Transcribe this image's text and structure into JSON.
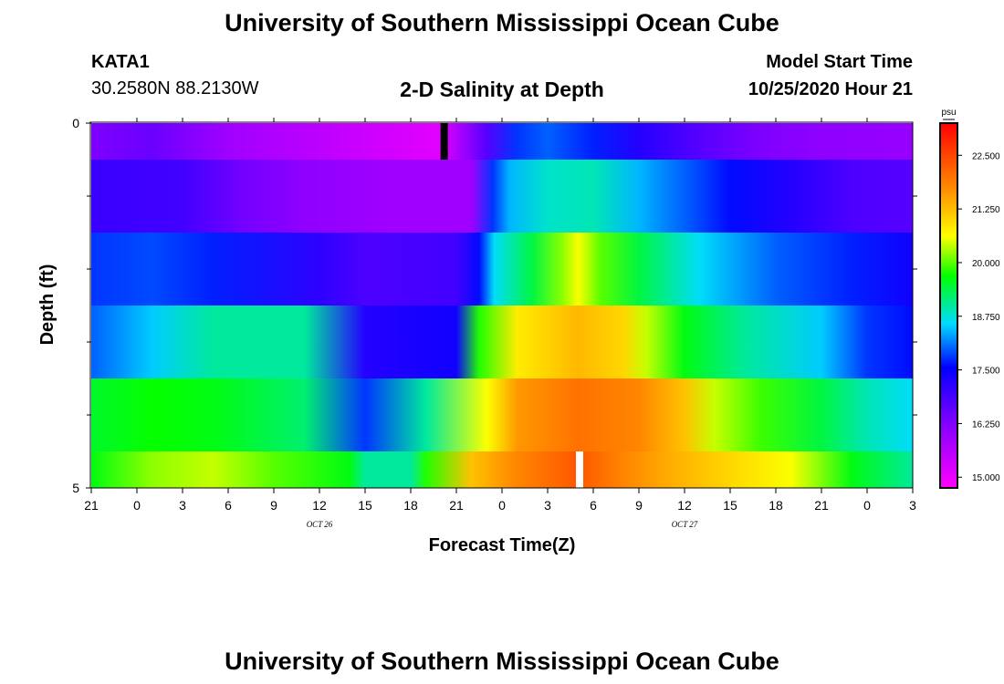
{
  "header": {
    "title": "University of Southern Mississippi Ocean Cube",
    "station": "KATA1",
    "coords": "30.2580N 88.2130W",
    "product": "2-D Salinity at Depth",
    "model_label": "Model Start Time",
    "model_time": "10/25/2020 Hour 21",
    "footer_title": "University of Southern Mississippi Ocean Cube"
  },
  "chart_data": {
    "type": "heatmap",
    "title": "2-D Salinity at Depth",
    "xlabel": "Forecast Time(Z)",
    "ylabel": "Depth (ft)",
    "x_hours": [
      0,
      3,
      6,
      9,
      12,
      15,
      18,
      21,
      24,
      27,
      30,
      33,
      36,
      39,
      42,
      45,
      48,
      51,
      54
    ],
    "x_tick_labels": [
      "21",
      "0",
      "3",
      "6",
      "9",
      "12",
      "15",
      "18",
      "21",
      "0",
      "3",
      "6",
      "9",
      "12",
      "15",
      "18",
      "21",
      "0",
      "3"
    ],
    "date_labels": [
      {
        "label": "OCT 26",
        "hour": 15
      },
      {
        "label": "OCT 27",
        "hour": 39
      }
    ],
    "y_range": [
      0,
      5
    ],
    "y_tick_labels": [
      "0",
      "5"
    ],
    "y_minor_ticks": [
      1,
      2,
      3,
      4
    ],
    "colorbar": {
      "unit": "psu",
      "min": 14.75,
      "max": 23.25,
      "tick_values": [
        15.0,
        16.25,
        17.5,
        18.75,
        20.0,
        21.25,
        22.5
      ],
      "tick_labels": [
        "15.000",
        "16.250",
        "17.500",
        "18.750",
        "20.000",
        "21.250",
        "22.500"
      ]
    },
    "layer_depths": [
      [
        0,
        0.5
      ],
      [
        0.5,
        1.5
      ],
      [
        1.5,
        2.5
      ],
      [
        2.5,
        3.5
      ],
      [
        3.5,
        4.5
      ],
      [
        4.5,
        5
      ]
    ],
    "layers": [
      [
        [
          0,
          16.3
        ],
        [
          4,
          16.5
        ],
        [
          9,
          15.9
        ],
        [
          14,
          15.6
        ],
        [
          21,
          15.2
        ],
        [
          23,
          15.1
        ],
        [
          26,
          16.7
        ],
        [
          28,
          17.8
        ],
        [
          30,
          18.0
        ],
        [
          33,
          17.7
        ],
        [
          36,
          17.2
        ],
        [
          40,
          16.7
        ],
        [
          44,
          16.3
        ],
        [
          48,
          16.1
        ],
        [
          54,
          16.0
        ]
      ],
      [
        [
          0,
          17.0
        ],
        [
          6,
          16.9
        ],
        [
          10,
          16.4
        ],
        [
          14,
          16.1
        ],
        [
          20,
          15.9
        ],
        [
          25,
          15.9
        ],
        [
          26.4,
          17.8
        ],
        [
          27.5,
          18.4
        ],
        [
          30,
          18.8
        ],
        [
          33,
          18.9
        ],
        [
          36,
          18.4
        ],
        [
          42,
          17.6
        ],
        [
          46,
          17.2
        ],
        [
          50,
          16.8
        ],
        [
          54,
          16.7
        ]
      ],
      [
        [
          0,
          17.8
        ],
        [
          4,
          17.9
        ],
        [
          8,
          17.7
        ],
        [
          15,
          17.1
        ],
        [
          18,
          16.8
        ],
        [
          24,
          16.9
        ],
        [
          25.5,
          17.6
        ],
        [
          26.5,
          18.6
        ],
        [
          29,
          19.4
        ],
        [
          31,
          20.2
        ],
        [
          32,
          20.6
        ],
        [
          33.5,
          20.0
        ],
        [
          36,
          19.4
        ],
        [
          40,
          18.6
        ],
        [
          45,
          18.0
        ],
        [
          50,
          17.7
        ],
        [
          54,
          17.4
        ]
      ],
      [
        [
          0,
          18.0
        ],
        [
          4,
          18.5
        ],
        [
          8,
          19.0
        ],
        [
          14,
          19.0
        ],
        [
          18,
          17.2
        ],
        [
          24,
          17.4
        ],
        [
          25.5,
          19.8
        ],
        [
          28,
          20.8
        ],
        [
          32,
          21.3
        ],
        [
          35,
          21.0
        ],
        [
          36.5,
          20.4
        ],
        [
          39,
          19.6
        ],
        [
          43,
          19.0
        ],
        [
          48,
          18.5
        ],
        [
          51,
          17.8
        ],
        [
          54,
          17.6
        ]
      ],
      [
        [
          0,
          19.5
        ],
        [
          4,
          19.7
        ],
        [
          8,
          19.6
        ],
        [
          14,
          19.2
        ],
        [
          18,
          17.8
        ],
        [
          22,
          19.0
        ],
        [
          26,
          20.6
        ],
        [
          28,
          21.6
        ],
        [
          32,
          22.0
        ],
        [
          36,
          21.8
        ],
        [
          39,
          21.2
        ],
        [
          41,
          20.4
        ],
        [
          44,
          19.9
        ],
        [
          48,
          19.4
        ],
        [
          51,
          18.9
        ],
        [
          54,
          18.6
        ]
      ],
      [
        [
          0,
          19.6
        ],
        [
          4,
          20.2
        ],
        [
          8,
          20.4
        ],
        [
          12,
          20.0
        ],
        [
          17,
          19.6
        ],
        [
          18,
          19.0
        ],
        [
          21,
          19.0
        ],
        [
          22,
          19.8
        ],
        [
          25,
          21.2
        ],
        [
          28,
          21.8
        ],
        [
          32,
          22.3
        ],
        [
          35,
          21.8
        ],
        [
          38,
          21.4
        ],
        [
          42,
          21.0
        ],
        [
          46,
          20.6
        ],
        [
          50,
          19.6
        ],
        [
          54,
          19.0
        ]
      ]
    ],
    "markers": [
      {
        "color": "#000000",
        "hour": 23.2,
        "depth_top": 0,
        "depth_bottom": 0.5
      },
      {
        "color": "#ffffff",
        "hour": 32.1,
        "depth_top": 4.5,
        "depth_bottom": 5
      }
    ]
  }
}
